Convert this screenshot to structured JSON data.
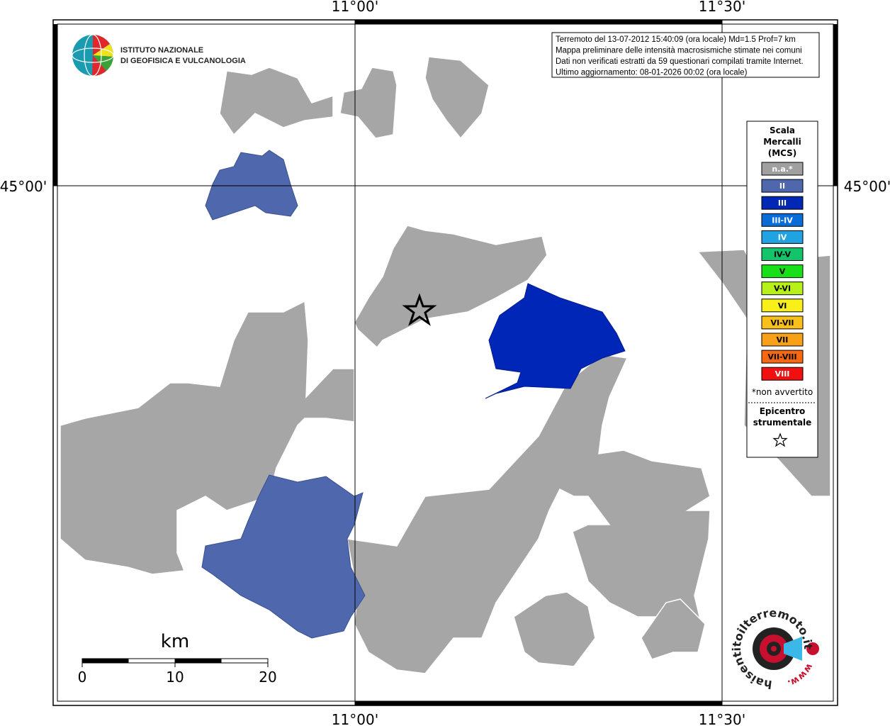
{
  "frame": {
    "top_left": "11°00'",
    "top_right": "11°30'",
    "left": "45°00'",
    "right": "45°00'",
    "bottom_left": "11°00'",
    "bottom_right": "11°30'"
  },
  "header": {
    "institute_line1": "ISTITUTO NAZIONALE",
    "institute_line2": "DI GEOFISICA E VULCANOLOGIA"
  },
  "info": [
    "Terremoto del 13-07-2012 15:40:09 (ora locale) Md=1.5 Prof=7 km",
    "Mappa preliminare delle intensità macrosismiche stimate nei comuni",
    "Dati non verificati estratti da 59 questionari compilati tramite Internet.",
    "Ultimo aggiornamento: 08-01-2026 00:02 (ora locale)"
  ],
  "legend": {
    "title": [
      "Scala",
      "Mercalli",
      "(MCS)"
    ],
    "items": [
      {
        "label": "n.a.*",
        "color": "#a0a0a0",
        "text_color": "#ffffff"
      },
      {
        "label": "II",
        "color": "#4f67ad",
        "text_color": "#ffffff"
      },
      {
        "label": "III",
        "color": "#0028b5",
        "text_color": "#ffffff"
      },
      {
        "label": "III-IV",
        "color": "#0a6cd6",
        "text_color": "#ffffff"
      },
      {
        "label": "IV",
        "color": "#20a3e0",
        "text_color": "#ffffff"
      },
      {
        "label": "IV-V",
        "color": "#12c46a",
        "text_color": "#000000"
      },
      {
        "label": "V",
        "color": "#18e018",
        "text_color": "#000000"
      },
      {
        "label": "V-VI",
        "color": "#b8f01a",
        "text_color": "#000000"
      },
      {
        "label": "VI",
        "color": "#f8f018",
        "text_color": "#000000"
      },
      {
        "label": "VI-VII",
        "color": "#f8c018",
        "text_color": "#000000"
      },
      {
        "label": "VII",
        "color": "#f8a018",
        "text_color": "#000000"
      },
      {
        "label": "VII-VIII",
        "color": "#f86810",
        "text_color": "#000000"
      },
      {
        "label": "VIII",
        "color": "#f01010",
        "text_color": "#ffffff"
      }
    ],
    "note": "*non avvertito",
    "epicenter": [
      "Epicentro",
      "strumentale"
    ]
  },
  "scale": {
    "unit": "km",
    "ticks": [
      "0",
      "10",
      "20"
    ]
  },
  "badge": {
    "site": "haisentitoilterremoto.it",
    "www": "www."
  }
}
